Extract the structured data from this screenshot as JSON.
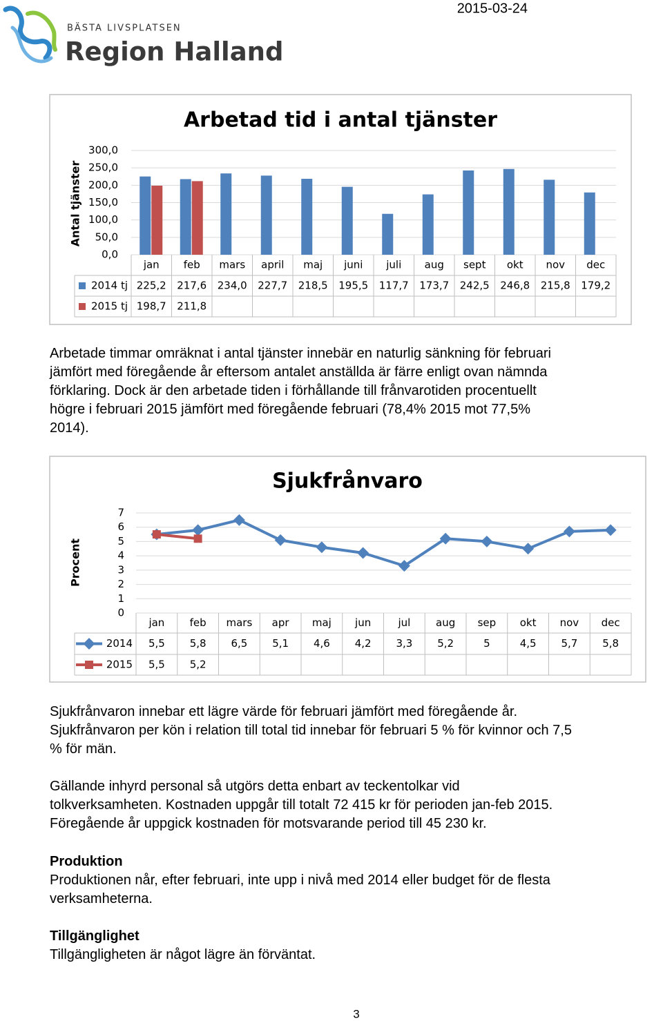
{
  "header": {
    "date": "2015-03-24",
    "logo_tagline": "BÄSTA LIVSPLATSEN",
    "logo_name": "Region Halland"
  },
  "chart_data": [
    {
      "type": "bar",
      "title": "Arbetad tid i antal tjänster",
      "y_label": "Antal tjänster",
      "categories": [
        "jan",
        "feb",
        "mars",
        "april",
        "maj",
        "juni",
        "juli",
        "aug",
        "sept",
        "okt",
        "nov",
        "dec"
      ],
      "series": [
        {
          "name": "2014 tj",
          "color": "#4f81bd",
          "values": [
            225.2,
            217.6,
            234.0,
            227.7,
            218.5,
            195.5,
            117.7,
            173.7,
            242.5,
            246.8,
            215.8,
            179.2
          ],
          "value_labels": [
            "225,2",
            "217,6",
            "234,0",
            "227,7",
            "218,5",
            "195,5",
            "117,7",
            "173,7",
            "242,5",
            "246,8",
            "215,8",
            "179,2"
          ]
        },
        {
          "name": "2015 tj",
          "color": "#c0504d",
          "values": [
            198.7,
            211.8,
            null,
            null,
            null,
            null,
            null,
            null,
            null,
            null,
            null,
            null
          ],
          "value_labels": [
            "198,7",
            "211,8",
            null,
            null,
            null,
            null,
            null,
            null,
            null,
            null,
            null,
            null
          ]
        }
      ],
      "ylim": [
        0,
        300
      ],
      "yticks": [
        {
          "value": 0,
          "label": "0,0"
        },
        {
          "value": 50,
          "label": "50,0"
        },
        {
          "value": 100,
          "label": "100,0"
        },
        {
          "value": 150,
          "label": "150,0"
        },
        {
          "value": 200,
          "label": "200,0"
        },
        {
          "value": 250,
          "label": "250,0"
        },
        {
          "value": 300,
          "label": "300,0"
        }
      ],
      "grid": true,
      "data_table": true
    },
    {
      "type": "line",
      "title": "Sjukfrånvaro",
      "y_label": "Procent",
      "categories": [
        "jan",
        "feb",
        "mars",
        "apr",
        "maj",
        "jun",
        "jul",
        "aug",
        "sep",
        "okt",
        "nov",
        "dec"
      ],
      "series": [
        {
          "name": "2014",
          "color": "#4f81bd",
          "marker": "diamond",
          "values": [
            5.5,
            5.8,
            6.5,
            5.1,
            4.6,
            4.2,
            3.3,
            5.2,
            5,
            4.5,
            5.7,
            5.8
          ],
          "value_labels": [
            "5,5",
            "5,8",
            "6,5",
            "5,1",
            "4,6",
            "4,2",
            "3,3",
            "5,2",
            "5",
            "4,5",
            "5,7",
            "5,8"
          ]
        },
        {
          "name": "2015",
          "color": "#c0504d",
          "marker": "square",
          "values": [
            5.5,
            5.2,
            null,
            null,
            null,
            null,
            null,
            null,
            null,
            null,
            null,
            null
          ],
          "value_labels": [
            "5,5",
            "5,2",
            null,
            null,
            null,
            null,
            null,
            null,
            null,
            null,
            null,
            null
          ]
        }
      ],
      "ylim": [
        0,
        7
      ],
      "yticks": [
        0,
        1,
        2,
        3,
        4,
        5,
        6,
        7
      ],
      "grid": true,
      "data_table": true
    }
  ],
  "text_blocks": [
    {
      "lines": [
        "Arbetade timmar omräknat i antal tjänster innebär en naturlig sänkning för februari",
        "jämfört med föregående år eftersom antalet anställda är färre enligt ovan nämnda",
        "förklaring. Dock är den arbetade tiden i förhållande till frånvarotiden procentuellt",
        "högre i februari 2015 jämfört med föregående februari (78,4% 2015 mot 77,5%",
        "2014)."
      ]
    },
    {
      "lines": [
        "Sjukfrånvaron innebar ett lägre värde för februari jämfört med föregående år.",
        "Sjukfrånvaron per kön i relation till total tid innebar för februari 5 % för kvinnor och 7,5",
        "% för män."
      ]
    },
    {
      "lines": [
        "Gällande inhyrd personal så utgörs detta enbart av teckentolkar vid",
        "tolkverksamheten. Kostnaden uppgår till totalt 72 415 kr för perioden jan-feb 2015.",
        "Föregående år uppgick kostnaden för motsvarande period till 45 230 kr."
      ]
    },
    {
      "heading": "Produktion",
      "lines": [
        "Produktionen når, efter februari, inte upp i nivå med 2014 eller budget för de flesta",
        "verksamheterna."
      ]
    },
    {
      "heading": "Tillgänglighet",
      "lines": [
        "Tillgängligheten är något lägre än förväntat."
      ]
    }
  ],
  "page_number": "3"
}
